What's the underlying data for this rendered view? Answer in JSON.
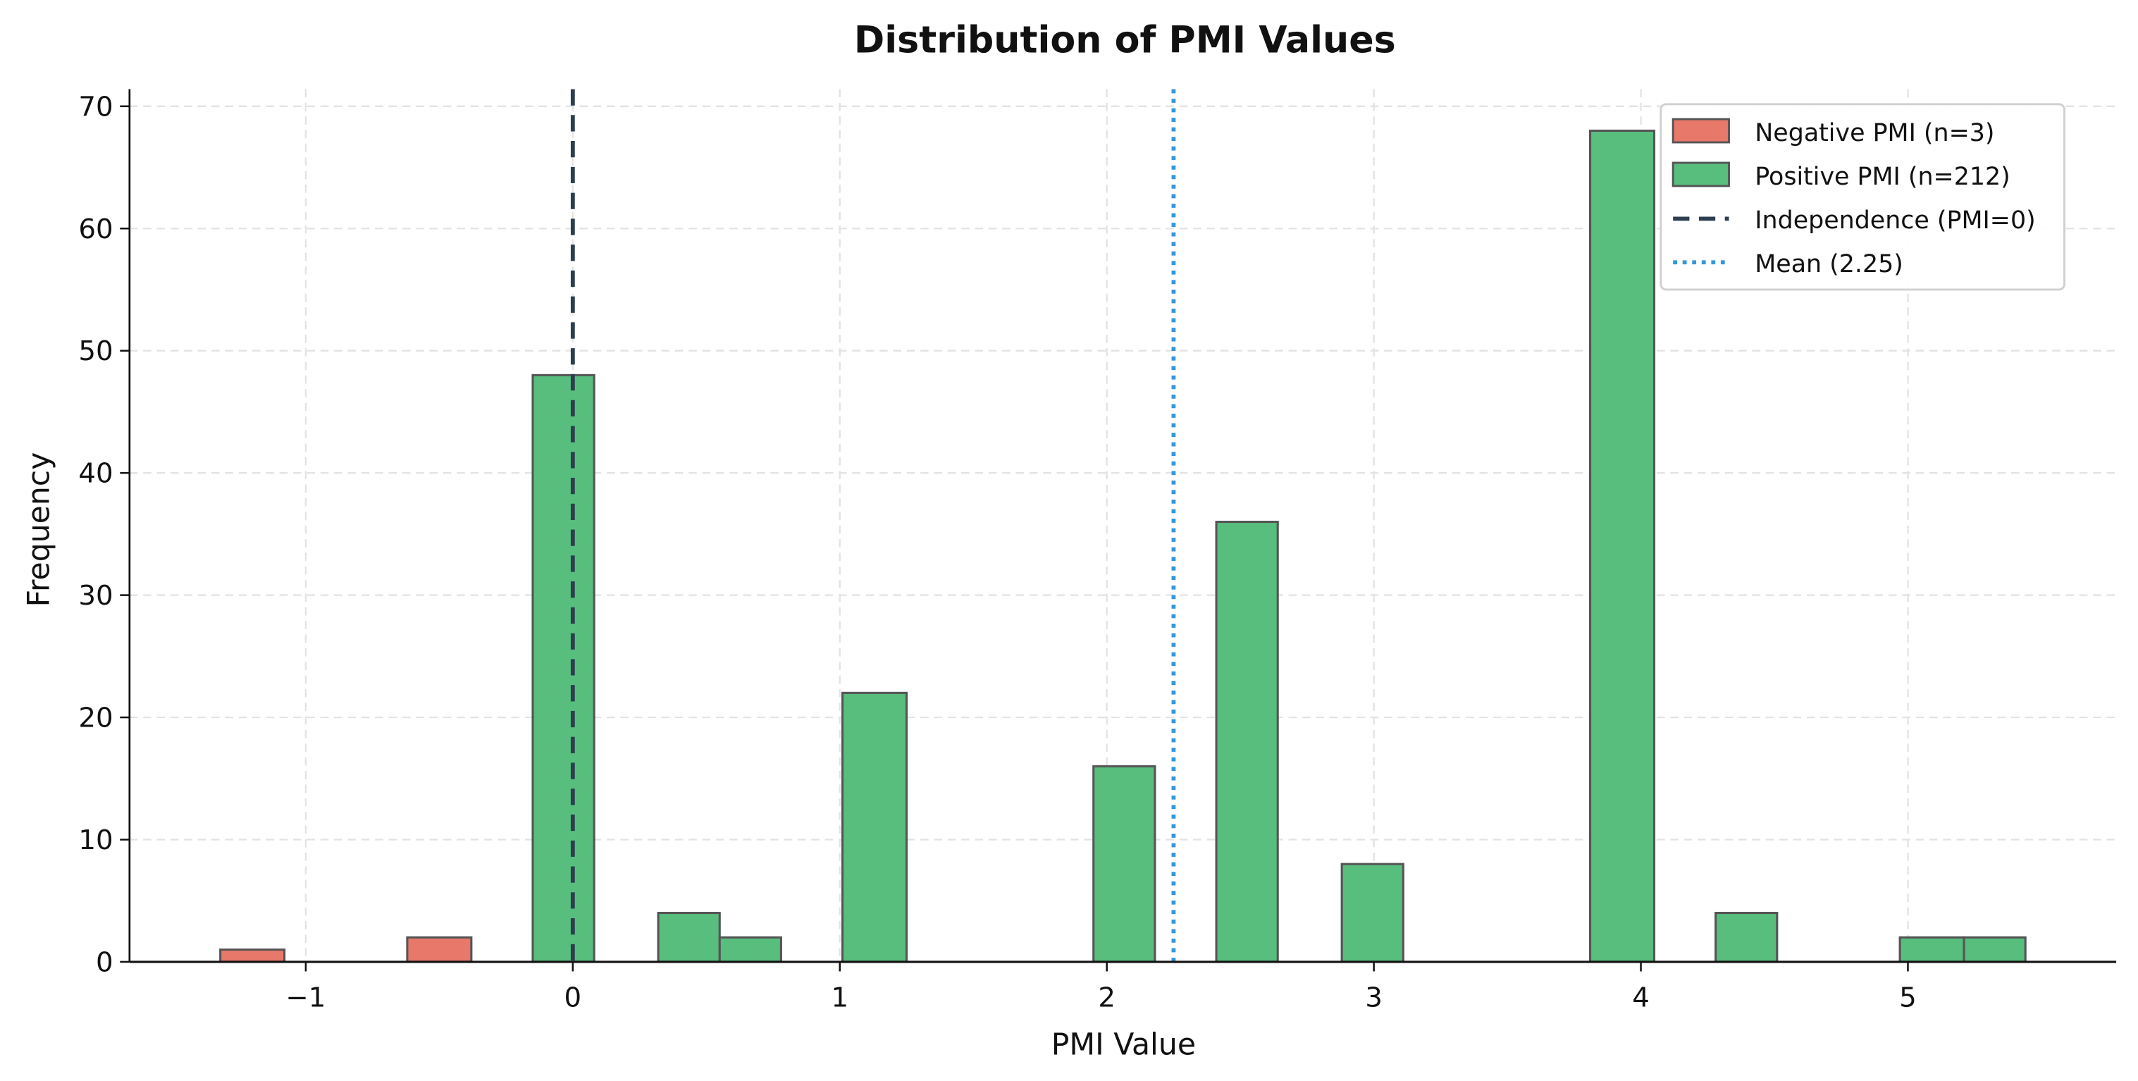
{
  "chart_data": {
    "type": "bar",
    "subtype": "histogram",
    "title": "Distribution of PMI Values",
    "xlabel": "PMI Value",
    "ylabel": "Frequency",
    "xlim": [
      -1.66,
      5.78
    ],
    "ylim": [
      0,
      71.4
    ],
    "xticks": [
      "−1",
      "0",
      "1",
      "2",
      "3",
      "4",
      "5"
    ],
    "xtick_values": [
      -1,
      0,
      1,
      2,
      3,
      4,
      5
    ],
    "yticks": [
      "0",
      "10",
      "20",
      "30",
      "40",
      "50",
      "60",
      "70"
    ],
    "ytick_values": [
      0,
      10,
      20,
      30,
      40,
      50,
      60,
      70
    ],
    "grid": true,
    "legend_placement": "top-right",
    "series": [
      {
        "name": "Negative PMI (n=3)",
        "color": "#e8786a",
        "bins": [
          {
            "left": -1.32,
            "right": -1.08,
            "count": 1
          },
          {
            "left": -0.62,
            "right": -0.38,
            "count": 2
          }
        ]
      },
      {
        "name": "Positive PMI (n=212)",
        "color": "#58be7e",
        "bins": [
          {
            "left": -0.15,
            "right": 0.08,
            "count": 48
          },
          {
            "left": 0.32,
            "right": 0.55,
            "count": 4
          },
          {
            "left": 0.55,
            "right": 0.78,
            "count": 2
          },
          {
            "left": 1.01,
            "right": 1.25,
            "count": 22
          },
          {
            "left": 1.95,
            "right": 2.18,
            "count": 16
          },
          {
            "left": 2.41,
            "right": 2.64,
            "count": 36
          },
          {
            "left": 2.88,
            "right": 3.11,
            "count": 8
          },
          {
            "left": 3.81,
            "right": 4.05,
            "count": 68
          },
          {
            "left": 4.28,
            "right": 4.51,
            "count": 4
          },
          {
            "left": 4.97,
            "right": 5.21,
            "count": 2
          },
          {
            "left": 5.21,
            "right": 5.44,
            "count": 2
          }
        ]
      }
    ],
    "reference_lines": [
      {
        "name": "Independence (PMI=0)",
        "x": 0,
        "style": "dashed",
        "color": "#2c3e50"
      },
      {
        "name": "Mean (2.25)",
        "x": 2.25,
        "style": "dotted",
        "color": "#3498db"
      }
    ]
  }
}
